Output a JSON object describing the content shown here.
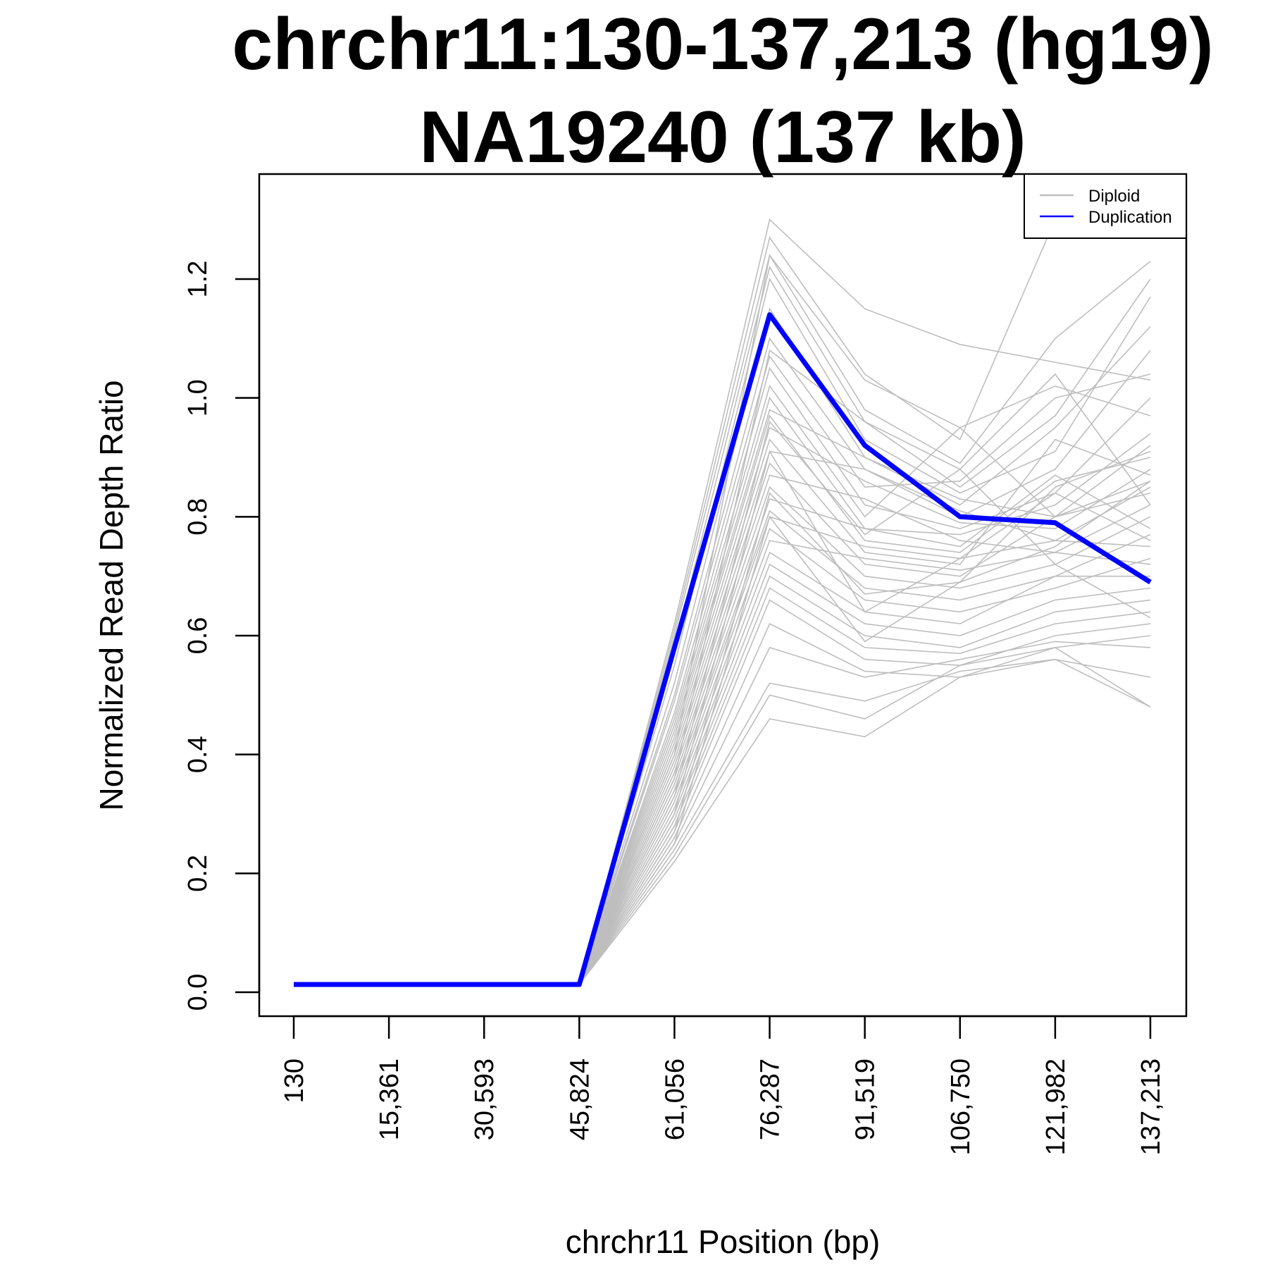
{
  "chart_data": {
    "type": "line",
    "title": [
      "chrchr11:130-137,213 (hg19)",
      "NA19240 (137 kb)"
    ],
    "xlabel": "chrchr11 Position (bp)",
    "ylabel": "Normalized Read Depth Ratio",
    "x": [
      130,
      15361,
      30593,
      45824,
      61056,
      76287,
      91519,
      106750,
      121982,
      137213
    ],
    "x_tick_labels": [
      "130",
      "15,361",
      "30,593",
      "45,824",
      "61,056",
      "76,287",
      "91,519",
      "106,750",
      "121,982",
      "137,213"
    ],
    "y_ticks": [
      0.0,
      0.2,
      0.4,
      0.6,
      0.8,
      1.0,
      1.2
    ],
    "y_tick_labels": [
      "0.0",
      "0.2",
      "0.4",
      "0.6",
      "0.8",
      "1.0",
      "1.2"
    ],
    "xlim": [
      130,
      137213
    ],
    "ylim": [
      0.0,
      1.3
    ],
    "legend_position": "top-right",
    "grid": false,
    "series": [
      {
        "name": "Duplication",
        "color": "#0000ff",
        "values": [
          0.013,
          0.013,
          0.013,
          0.013,
          0.58,
          1.14,
          0.92,
          0.8,
          0.79,
          0.69
        ]
      }
    ],
    "background_series": {
      "name": "Diploid",
      "color": "#bebebe",
      "lines": [
        [
          0.013,
          0.013,
          0.013,
          0.013,
          0.62,
          1.3,
          1.15,
          1.09,
          1.06,
          1.03
        ],
        [
          0.013,
          0.013,
          0.013,
          0.013,
          0.61,
          1.27,
          1.04,
          0.93,
          1.3,
          1.28
        ],
        [
          0.013,
          0.013,
          0.013,
          0.013,
          0.6,
          1.24,
          0.98,
          0.89,
          1.1,
          1.23
        ],
        [
          0.013,
          0.013,
          0.013,
          0.013,
          0.58,
          1.22,
          0.96,
          0.85,
          0.97,
          1.2
        ],
        [
          0.013,
          0.013,
          0.013,
          0.013,
          0.55,
          1.2,
          0.93,
          0.84,
          0.91,
          1.17
        ],
        [
          0.013,
          0.013,
          0.013,
          0.013,
          0.52,
          1.15,
          0.9,
          0.82,
          0.95,
          1.12
        ],
        [
          0.013,
          0.013,
          0.013,
          0.013,
          0.5,
          1.1,
          0.88,
          0.8,
          0.88,
          1.08
        ],
        [
          0.013,
          0.013,
          0.013,
          0.013,
          0.49,
          1.07,
          0.85,
          0.86,
          1.0,
          1.04
        ],
        [
          0.013,
          0.013,
          0.013,
          0.013,
          0.47,
          1.05,
          0.82,
          0.78,
          0.84,
          1.0
        ],
        [
          0.013,
          0.013,
          0.013,
          0.013,
          0.46,
          1.02,
          0.8,
          0.95,
          1.02,
          0.97
        ],
        [
          0.013,
          0.013,
          0.013,
          0.013,
          0.45,
          1.0,
          0.78,
          0.77,
          0.82,
          0.94
        ],
        [
          0.013,
          0.013,
          0.013,
          0.013,
          0.44,
          0.98,
          0.9,
          0.83,
          0.8,
          0.92
        ],
        [
          0.013,
          0.013,
          0.013,
          0.013,
          0.43,
          0.97,
          0.76,
          0.74,
          0.86,
          0.9
        ],
        [
          0.013,
          0.013,
          0.013,
          0.013,
          0.42,
          0.95,
          0.86,
          0.79,
          0.78,
          0.88
        ],
        [
          0.013,
          0.013,
          0.013,
          0.013,
          0.41,
          0.93,
          0.74,
          0.72,
          0.93,
          0.87
        ],
        [
          0.013,
          0.013,
          0.013,
          0.013,
          0.4,
          0.91,
          0.88,
          0.81,
          0.76,
          0.85
        ],
        [
          0.013,
          0.013,
          0.013,
          0.013,
          0.39,
          0.89,
          0.72,
          0.7,
          0.8,
          0.84
        ],
        [
          0.013,
          0.013,
          0.013,
          0.013,
          0.38,
          0.87,
          0.83,
          0.76,
          0.74,
          0.82
        ],
        [
          0.013,
          0.013,
          0.013,
          0.013,
          0.37,
          0.85,
          0.7,
          0.68,
          0.72,
          0.8
        ],
        [
          0.013,
          0.013,
          0.013,
          0.013,
          0.36,
          0.83,
          0.78,
          0.75,
          0.87,
          0.78
        ],
        [
          0.013,
          0.013,
          0.013,
          0.013,
          0.35,
          0.81,
          0.68,
          0.66,
          0.7,
          0.77
        ],
        [
          0.013,
          0.013,
          0.013,
          0.013,
          0.34,
          0.8,
          0.75,
          0.73,
          0.76,
          0.75
        ],
        [
          0.013,
          0.013,
          0.013,
          0.013,
          0.33,
          0.78,
          0.66,
          0.64,
          0.68,
          0.73
        ],
        [
          0.013,
          0.013,
          0.013,
          0.013,
          0.32,
          0.76,
          0.73,
          0.71,
          0.74,
          0.72
        ],
        [
          0.013,
          0.013,
          0.013,
          0.013,
          0.31,
          0.74,
          0.64,
          0.62,
          0.7,
          0.7
        ],
        [
          0.013,
          0.013,
          0.013,
          0.013,
          0.3,
          0.72,
          0.62,
          0.6,
          0.66,
          0.68
        ],
        [
          0.013,
          0.013,
          0.013,
          0.013,
          0.29,
          0.7,
          0.6,
          0.58,
          0.64,
          0.66
        ],
        [
          0.013,
          0.013,
          0.013,
          0.013,
          0.28,
          0.68,
          0.58,
          0.57,
          0.62,
          0.64
        ],
        [
          0.013,
          0.013,
          0.013,
          0.013,
          0.27,
          0.66,
          0.56,
          0.55,
          0.6,
          0.62
        ],
        [
          0.013,
          0.013,
          0.013,
          0.013,
          0.26,
          0.62,
          0.54,
          0.53,
          0.58,
          0.6
        ],
        [
          0.013,
          0.013,
          0.013,
          0.013,
          0.25,
          0.58,
          0.53,
          0.56,
          0.59,
          0.58
        ],
        [
          0.013,
          0.013,
          0.013,
          0.013,
          0.24,
          0.52,
          0.49,
          0.54,
          0.56,
          0.53
        ],
        [
          0.013,
          0.013,
          0.013,
          0.013,
          0.23,
          0.5,
          0.46,
          0.55,
          0.58,
          0.48
        ],
        [
          0.013,
          0.013,
          0.013,
          0.013,
          0.22,
          0.46,
          0.43,
          0.53,
          0.56,
          0.48
        ],
        [
          0.013,
          0.013,
          0.013,
          0.013,
          0.4,
          1.24,
          1.03,
          0.95,
          0.8,
          0.86
        ],
        [
          0.013,
          0.013,
          0.013,
          0.013,
          0.36,
          1.08,
          0.96,
          0.88,
          0.72,
          0.63
        ],
        [
          0.013,
          0.013,
          0.013,
          0.013,
          0.33,
          0.96,
          0.77,
          0.88,
          1.04,
          0.82
        ],
        [
          0.013,
          0.013,
          0.013,
          0.013,
          0.3,
          0.91,
          0.64,
          0.73,
          0.84,
          0.76
        ],
        [
          0.013,
          0.013,
          0.013,
          0.013,
          0.27,
          0.84,
          0.67,
          0.69,
          0.85,
          0.91
        ],
        [
          0.013,
          0.013,
          0.013,
          0.013,
          0.25,
          0.8,
          0.59,
          0.69,
          0.75,
          0.86
        ]
      ]
    }
  }
}
